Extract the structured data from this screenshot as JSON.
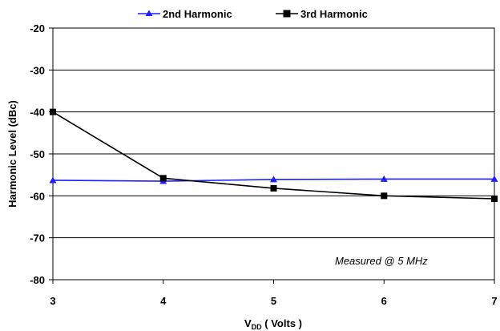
{
  "chart_data": {
    "type": "line",
    "x": [
      3,
      4,
      5,
      6,
      7
    ],
    "xlim": [
      3,
      7
    ],
    "ylim": [
      -80,
      -20
    ],
    "xticks": [
      "3",
      "4",
      "5",
      "6",
      "7"
    ],
    "yticks": [
      "-20",
      "-30",
      "-40",
      "-50",
      "-60",
      "-70",
      "-80"
    ],
    "xlabel_main": "V",
    "xlabel_sub": "DD",
    "xlabel_rest": " ( Volts )",
    "ylabel": "Harmonic Level (dBc)",
    "grid": "horizontal",
    "legend_position": "top",
    "annotation": "Measured @ 5 MHz",
    "series": [
      {
        "name": "2nd Harmonic",
        "color": "#1f1fff",
        "marker": "triangle",
        "values": [
          -56.3,
          -56.5,
          -56.1,
          -56.0,
          -56.0
        ]
      },
      {
        "name": "3rd Harmonic",
        "color": "#000000",
        "marker": "square",
        "values": [
          -40.0,
          -55.8,
          -58.2,
          -60.0,
          -60.7
        ]
      }
    ]
  }
}
